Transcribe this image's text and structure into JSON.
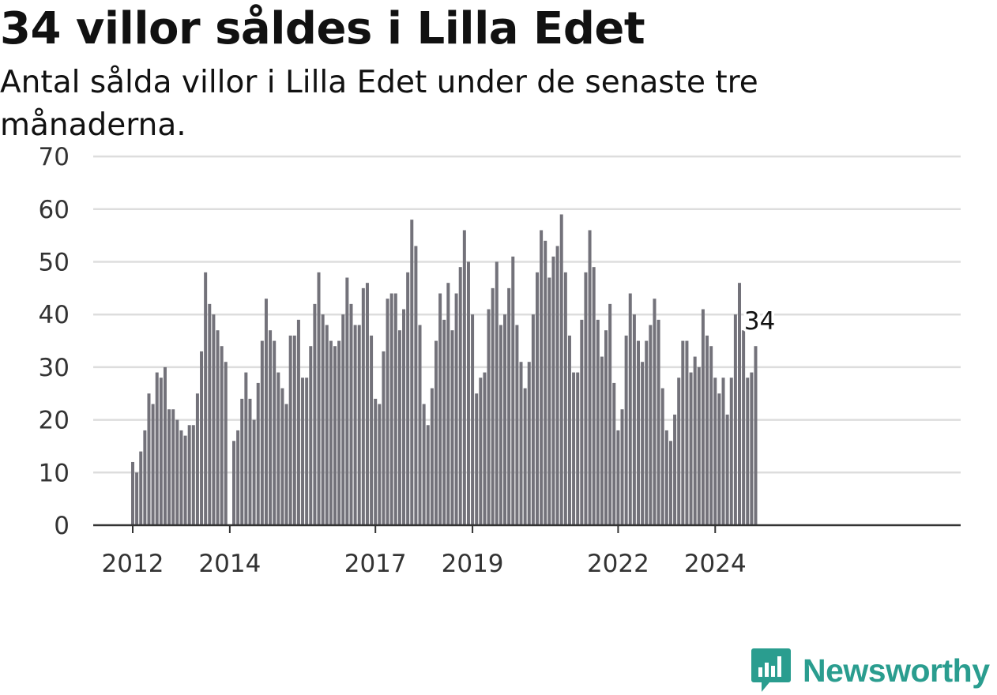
{
  "title": "34 villor såldes i Lilla Edet",
  "subtitle": "Antal sålda villor i Lilla Edet under de senaste tre månaderna.",
  "logo_text": "Newsworthy",
  "colors": {
    "bar": "#73727a",
    "highlight": "#21a39a",
    "grid": "#dddddd",
    "axis": "#333333",
    "brand": "#2a9d8f"
  },
  "chart_data": {
    "type": "bar",
    "title": "34 villor såldes i Lilla Edet",
    "subtitle": "Antal sålda villor i Lilla Edet under de senaste tre månaderna.",
    "xlabel": "",
    "ylabel": "",
    "ylim": [
      0,
      70
    ],
    "yticks": [
      0,
      10,
      20,
      30,
      40,
      50,
      60,
      70
    ],
    "grid": true,
    "x_start": "2012-01",
    "x_end": "2024-12",
    "x_ticks": [
      {
        "label": "2012",
        "date": "2012-01"
      },
      {
        "label": "2014",
        "date": "2014-01"
      },
      {
        "label": "2017",
        "date": "2017-01"
      },
      {
        "label": "2019",
        "date": "2019-01"
      },
      {
        "label": "2022",
        "date": "2022-01"
      },
      {
        "label": "2024",
        "date": "2024-01"
      }
    ],
    "highlight": {
      "date": "2024-12",
      "value": 34,
      "label": "34"
    },
    "values": [
      12,
      10,
      14,
      18,
      25,
      23,
      29,
      28,
      30,
      22,
      22,
      20,
      18,
      17,
      19,
      19,
      25,
      33,
      48,
      42,
      40,
      37,
      34,
      31,
      0,
      16,
      18,
      24,
      29,
      24,
      20,
      27,
      35,
      43,
      37,
      35,
      29,
      26,
      23,
      36,
      36,
      39,
      28,
      28,
      34,
      42,
      48,
      40,
      38,
      35,
      34,
      35,
      40,
      47,
      42,
      38,
      38,
      45,
      46,
      36,
      24,
      23,
      33,
      43,
      44,
      44,
      37,
      41,
      48,
      58,
      53,
      38,
      23,
      19,
      26,
      35,
      44,
      39,
      46,
      37,
      44,
      49,
      56,
      50,
      40,
      25,
      28,
      29,
      41,
      45,
      50,
      38,
      40,
      45,
      51,
      38,
      31,
      26,
      31,
      40,
      48,
      56,
      54,
      47,
      51,
      53,
      59,
      48,
      36,
      29,
      29,
      39,
      48,
      56,
      49,
      39,
      32,
      37,
      42,
      27,
      18,
      22,
      36,
      44,
      40,
      35,
      31,
      35,
      38,
      43,
      39,
      26,
      18,
      16,
      21,
      28,
      35,
      35,
      29,
      32,
      30,
      41,
      36,
      34,
      28,
      25,
      28,
      21,
      28,
      40,
      46,
      37,
      28,
      29,
      34
    ]
  }
}
